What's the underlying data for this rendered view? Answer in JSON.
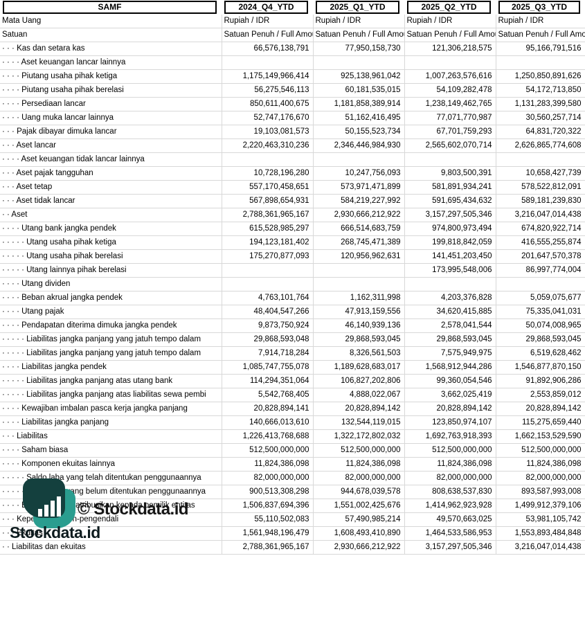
{
  "header": {
    "entity": "SAMF",
    "columns": [
      "2024_Q4_YTD",
      "2025_Q1_YTD",
      "2025_Q2_YTD",
      "2025_Q3_YTD"
    ],
    "currency_label": "Mata Uang",
    "currency_value": "Rupiah / IDR",
    "unit_label": "Satuan",
    "unit_value": "Satuan Penuh / Full Amount"
  },
  "rows": [
    {
      "label": "· · · Kas dan setara kas",
      "values": [
        "66,576,138,791",
        "77,950,158,730",
        "121,306,218,575",
        "95,166,791,516"
      ]
    },
    {
      "label": "· · · · Aset keuangan lancar lainnya",
      "values": [
        "",
        "",
        "",
        ""
      ]
    },
    {
      "label": "· · · · Piutang usaha pihak ketiga",
      "values": [
        "1,175,149,966,414",
        "925,138,961,042",
        "1,007,263,576,616",
        "1,250,850,891,626"
      ]
    },
    {
      "label": "· · · · Piutang usaha pihak berelasi",
      "values": [
        "56,275,546,113",
        "60,181,535,015",
        "54,109,282,478",
        "54,172,713,850"
      ]
    },
    {
      "label": "· · · · Persediaan lancar",
      "values": [
        "850,611,400,675",
        "1,181,858,389,914",
        "1,238,149,462,765",
        "1,131,283,399,580"
      ]
    },
    {
      "label": "· · · · Uang muka lancar lainnya",
      "values": [
        "52,747,176,670",
        "51,162,416,495",
        "77,071,770,987",
        "30,560,257,714"
      ]
    },
    {
      "label": "· · · Pajak dibayar dimuka lancar",
      "values": [
        "19,103,081,573",
        "50,155,523,734",
        "67,701,759,293",
        "64,831,720,322"
      ]
    },
    {
      "label": "· · · Aset lancar",
      "values": [
        "2,220,463,310,236",
        "2,346,446,984,930",
        "2,565,602,070,714",
        "2,626,865,774,608"
      ]
    },
    {
      "label": "· · · · Aset keuangan tidak lancar lainnya",
      "values": [
        "",
        "",
        "",
        ""
      ]
    },
    {
      "label": "· · · Aset pajak tangguhan",
      "values": [
        "10,728,196,280",
        "10,247,756,093",
        "9,803,500,391",
        "10,658,427,739"
      ]
    },
    {
      "label": "· · · Aset tetap",
      "values": [
        "557,170,458,651",
        "573,971,471,899",
        "581,891,934,241",
        "578,522,812,091"
      ]
    },
    {
      "label": "· · · Aset tidak lancar",
      "values": [
        "567,898,654,931",
        "584,219,227,992",
        "591,695,434,632",
        "589,181,239,830"
      ]
    },
    {
      "label": "· · Aset",
      "values": [
        "2,788,361,965,167",
        "2,930,666,212,922",
        "3,157,297,505,346",
        "3,216,047,014,438"
      ]
    },
    {
      "label": "· · · · Utang bank jangka pendek",
      "values": [
        "615,528,985,297",
        "666,514,683,759",
        "974,800,973,494",
        "674,820,922,714"
      ]
    },
    {
      "label": "· · · · · Utang usaha pihak ketiga",
      "values": [
        "194,123,181,402",
        "268,745,471,389",
        "199,818,842,059",
        "416,555,255,874"
      ]
    },
    {
      "label": "· · · · · Utang usaha pihak berelasi",
      "values": [
        "175,270,877,093",
        "120,956,962,631",
        "141,451,203,450",
        "201,647,570,378"
      ]
    },
    {
      "label": "· · · · · Utang lainnya pihak berelasi",
      "values": [
        "",
        "",
        "173,995,548,006",
        "86,997,774,004"
      ]
    },
    {
      "label": "· · · · Utang dividen",
      "values": [
        "",
        "",
        "",
        ""
      ]
    },
    {
      "label": "· · · · Beban akrual jangka pendek",
      "values": [
        "4,763,101,764",
        "1,162,311,998",
        "4,203,376,828",
        "5,059,075,677"
      ]
    },
    {
      "label": "· · · · Utang pajak",
      "values": [
        "48,404,547,266",
        "47,913,159,556",
        "34,620,415,885",
        "75,335,041,031"
      ]
    },
    {
      "label": "· · · · Pendapatan diterima dimuka jangka pendek",
      "values": [
        "9,873,750,924",
        "46,140,939,136",
        "2,578,041,544",
        "50,074,008,965"
      ]
    },
    {
      "label": "· · · · · Liabilitas jangka panjang yang jatuh tempo dalam",
      "values": [
        "29,868,593,048",
        "29,868,593,045",
        "29,868,593,045",
        "29,868,593,045"
      ]
    },
    {
      "label": "· · · · · Liabilitas jangka panjang yang jatuh tempo dalam",
      "values": [
        "7,914,718,284",
        "8,326,561,503",
        "7,575,949,975",
        "6,519,628,462"
      ]
    },
    {
      "label": "· · · · Liabilitas jangka pendek",
      "values": [
        "1,085,747,755,078",
        "1,189,628,683,017",
        "1,568,912,944,286",
        "1,546,877,870,150"
      ]
    },
    {
      "label": "· · · · · Liabilitas jangka panjang atas utang bank",
      "values": [
        "114,294,351,064",
        "106,827,202,806",
        "99,360,054,546",
        "91,892,906,286"
      ]
    },
    {
      "label": "· · · · · Liabilitas jangka panjang atas liabilitas sewa pembi",
      "values": [
        "5,542,768,405",
        "4,888,022,067",
        "3,662,025,419",
        "2,553,859,012"
      ]
    },
    {
      "label": "· · · · Kewajiban imbalan pasca kerja jangka panjang",
      "values": [
        "20,828,894,141",
        "20,828,894,142",
        "20,828,894,142",
        "20,828,894,142"
      ]
    },
    {
      "label": "· · · · Liabilitas jangka panjang",
      "values": [
        "140,666,013,610",
        "132,544,119,015",
        "123,850,974,107",
        "115,275,659,440"
      ]
    },
    {
      "label": "· · · Liabilitas",
      "values": [
        "1,226,413,768,688",
        "1,322,172,802,032",
        "1,692,763,918,393",
        "1,662,153,529,590"
      ]
    },
    {
      "label": "· · · · Saham biasa",
      "values": [
        "512,500,000,000",
        "512,500,000,000",
        "512,500,000,000",
        "512,500,000,000"
      ]
    },
    {
      "label": "· · · · Komponen ekuitas lainnya",
      "values": [
        "11,824,386,098",
        "11,824,386,098",
        "11,824,386,098",
        "11,824,386,098"
      ]
    },
    {
      "label": "· · · · · Saldo laba yang telah ditentukan penggunaannya",
      "values": [
        "82,000,000,000",
        "82,000,000,000",
        "82,000,000,000",
        "82,000,000,000"
      ]
    },
    {
      "label": "· · · · · Saldo laba yang belum ditentukan penggunaannya",
      "values": [
        "900,513,308,298",
        "944,678,039,578",
        "808,638,537,830",
        "893,587,993,008"
      ]
    },
    {
      "label": "· · · · Ekuitas yang diatribusikan kepada pemilik entitas",
      "values": [
        "1,506,837,694,396",
        "1,551,002,425,676",
        "1,414,962,923,928",
        "1,499,912,379,106"
      ]
    },
    {
      "label": "· · · Kepentingan non-pengendali",
      "values": [
        "55,110,502,083",
        "57,490,985,214",
        "49,570,663,025",
        "53,981,105,742"
      ]
    },
    {
      "label": "· · · Ekuitas",
      "values": [
        "1,561,948,196,479",
        "1,608,493,410,890",
        "1,464,533,586,953",
        "1,553,893,484,848"
      ]
    },
    {
      "label": "· · Liabilitas dan ekuitas",
      "values": [
        "2,788,361,965,167",
        "2,930,666,212,922",
        "3,157,297,505,346",
        "3,216,047,014,438"
      ]
    }
  ],
  "watermark": {
    "copyright": "© Stockdata.id",
    "brand": "Stockdata.id",
    "color_dark": "#14403e",
    "color_light": "#2a9d8f"
  }
}
